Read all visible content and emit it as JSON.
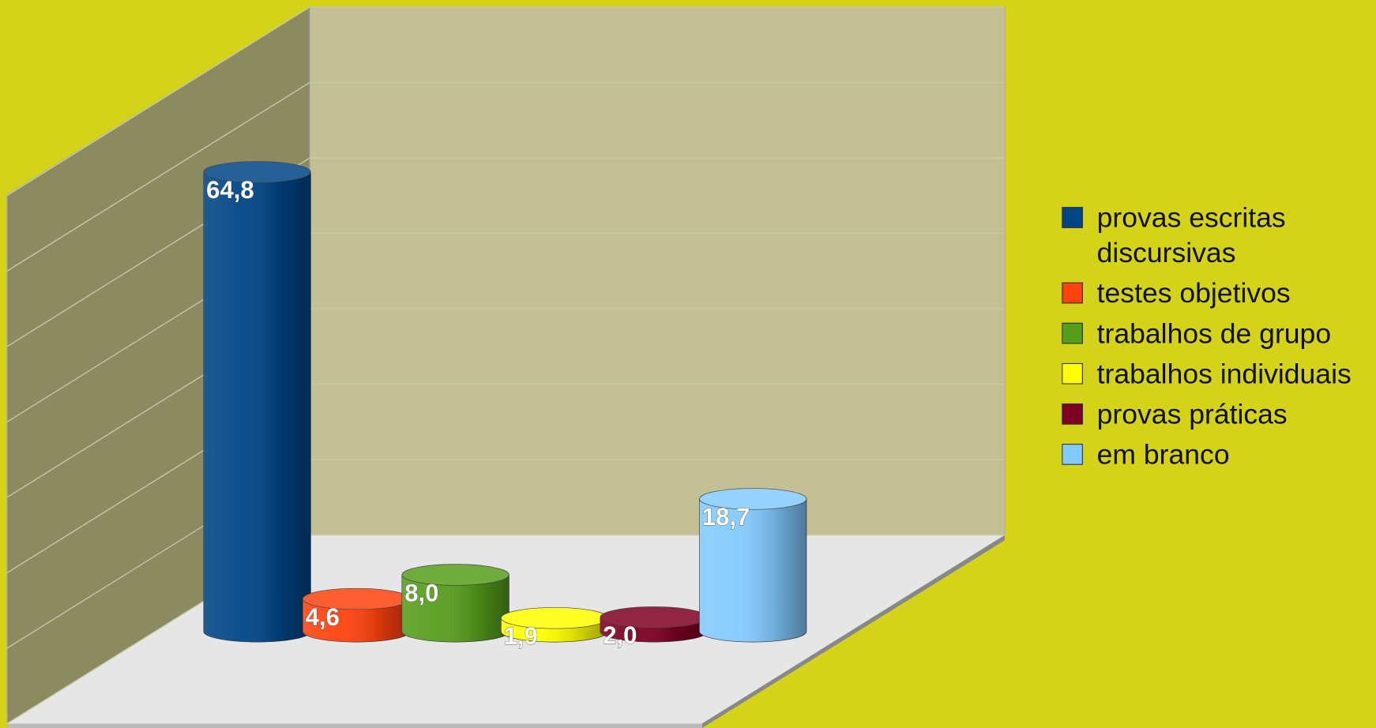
{
  "chart_data": {
    "type": "bar",
    "categories": [
      "provas escritas discursivas",
      "testes objetivos",
      "trabalhos de grupo",
      "trabalhos individuais",
      "provas práticas",
      "em branco"
    ],
    "colors": [
      "#004586",
      "#ff420e",
      "#579d1c",
      "#ffff00",
      "#7e0021",
      "#83caff"
    ],
    "values": [
      64.8,
      4.6,
      8.0,
      1.9,
      2.0,
      18.7
    ],
    "value_labels": [
      "64,8",
      "4,6",
      "8,0",
      "1,9",
      "2,0",
      "18,7"
    ],
    "ylim": [
      0,
      70
    ],
    "yticks": [
      0,
      10,
      20,
      30,
      40,
      50,
      60,
      70
    ],
    "grid": true,
    "legend": "right"
  }
}
